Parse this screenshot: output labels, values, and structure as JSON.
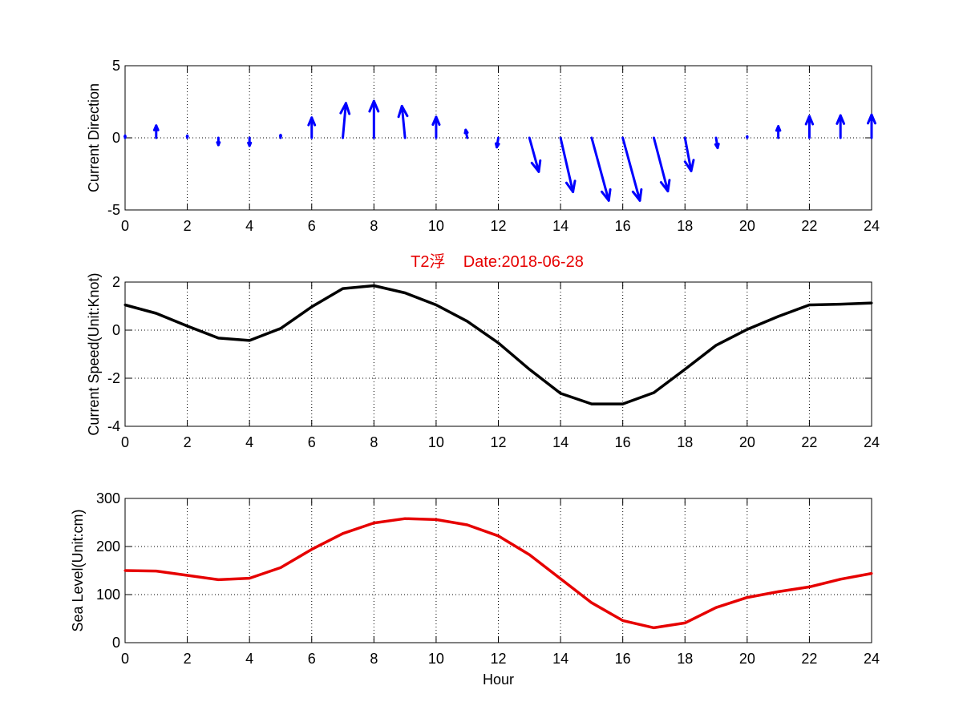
{
  "colors": {
    "quiver": "#0000ff",
    "speed_line": "#000000",
    "sea_level_line": "#e60000",
    "title": "#e60000"
  },
  "title": "T2浮    Date:2018-06-28",
  "chart_data": [
    {
      "type": "quiver",
      "ylabel": "Current Direction",
      "xlabel": "",
      "xlim": [
        0,
        24
      ],
      "ylim": [
        -5,
        5
      ],
      "xticks": [
        0,
        2,
        4,
        6,
        8,
        10,
        12,
        14,
        16,
        18,
        20,
        22,
        24
      ],
      "yticks": [
        -5,
        0,
        5
      ],
      "grid": true,
      "x": [
        0,
        1,
        2,
        3,
        4,
        5,
        6,
        7,
        8,
        9,
        10,
        11,
        12,
        13,
        14,
        15,
        16,
        17,
        18,
        19,
        20,
        21,
        22,
        23,
        24
      ],
      "u": [
        0.0,
        0.0,
        0.0,
        0.0,
        0.0,
        0.0,
        0.0,
        0.1,
        0.0,
        -0.1,
        0.0,
        -0.05,
        -0.05,
        0.3,
        0.4,
        0.55,
        0.55,
        0.45,
        0.2,
        0.05,
        0.0,
        0.0,
        0.0,
        0.0,
        0.0
      ],
      "v": [
        0.15,
        0.85,
        0.15,
        -0.5,
        -0.55,
        0.2,
        1.4,
        2.4,
        2.55,
        2.2,
        1.45,
        0.55,
        -0.65,
        -2.35,
        -3.75,
        -4.35,
        -4.35,
        -3.7,
        -2.3,
        -0.7,
        0.1,
        0.8,
        1.5,
        1.55,
        1.6
      ]
    },
    {
      "type": "line",
      "ylabel": "Current Speed(Unit:Knot)",
      "xlabel": "",
      "xlim": [
        0,
        24
      ],
      "ylim": [
        -4,
        2
      ],
      "xticks": [
        0,
        2,
        4,
        6,
        8,
        10,
        12,
        14,
        16,
        18,
        20,
        22,
        24
      ],
      "yticks": [
        -4,
        -2,
        0,
        2
      ],
      "grid": true,
      "x": [
        0,
        1,
        2,
        3,
        4,
        5,
        6,
        7,
        8,
        9,
        10,
        11,
        12,
        13,
        14,
        15,
        16,
        17,
        18,
        19,
        20,
        21,
        22,
        23,
        24
      ],
      "y": [
        1.05,
        0.7,
        0.17,
        -0.33,
        -0.43,
        0.07,
        0.97,
        1.73,
        1.85,
        1.55,
        1.05,
        0.37,
        -0.53,
        -1.63,
        -2.63,
        -3.07,
        -3.07,
        -2.6,
        -1.63,
        -0.63,
        0.03,
        0.57,
        1.05,
        1.08,
        1.13
      ]
    },
    {
      "type": "line",
      "ylabel": "Sea Level(Unit:cm)",
      "xlabel": "Hour",
      "xlim": [
        0,
        24
      ],
      "ylim": [
        0,
        300
      ],
      "xticks": [
        0,
        2,
        4,
        6,
        8,
        10,
        12,
        14,
        16,
        18,
        20,
        22,
        24
      ],
      "yticks": [
        0,
        100,
        200,
        300
      ],
      "grid": true,
      "x": [
        0,
        1,
        2,
        3,
        4,
        5,
        6,
        7,
        8,
        9,
        10,
        11,
        12,
        13,
        14,
        15,
        16,
        17,
        18,
        19,
        20,
        21,
        22,
        23,
        24
      ],
      "y": [
        150,
        149,
        140,
        131,
        134,
        156,
        194,
        227,
        249,
        258,
        256,
        245,
        222,
        183,
        133,
        83,
        46,
        31,
        41,
        73,
        94,
        106,
        116,
        132,
        144
      ]
    }
  ]
}
